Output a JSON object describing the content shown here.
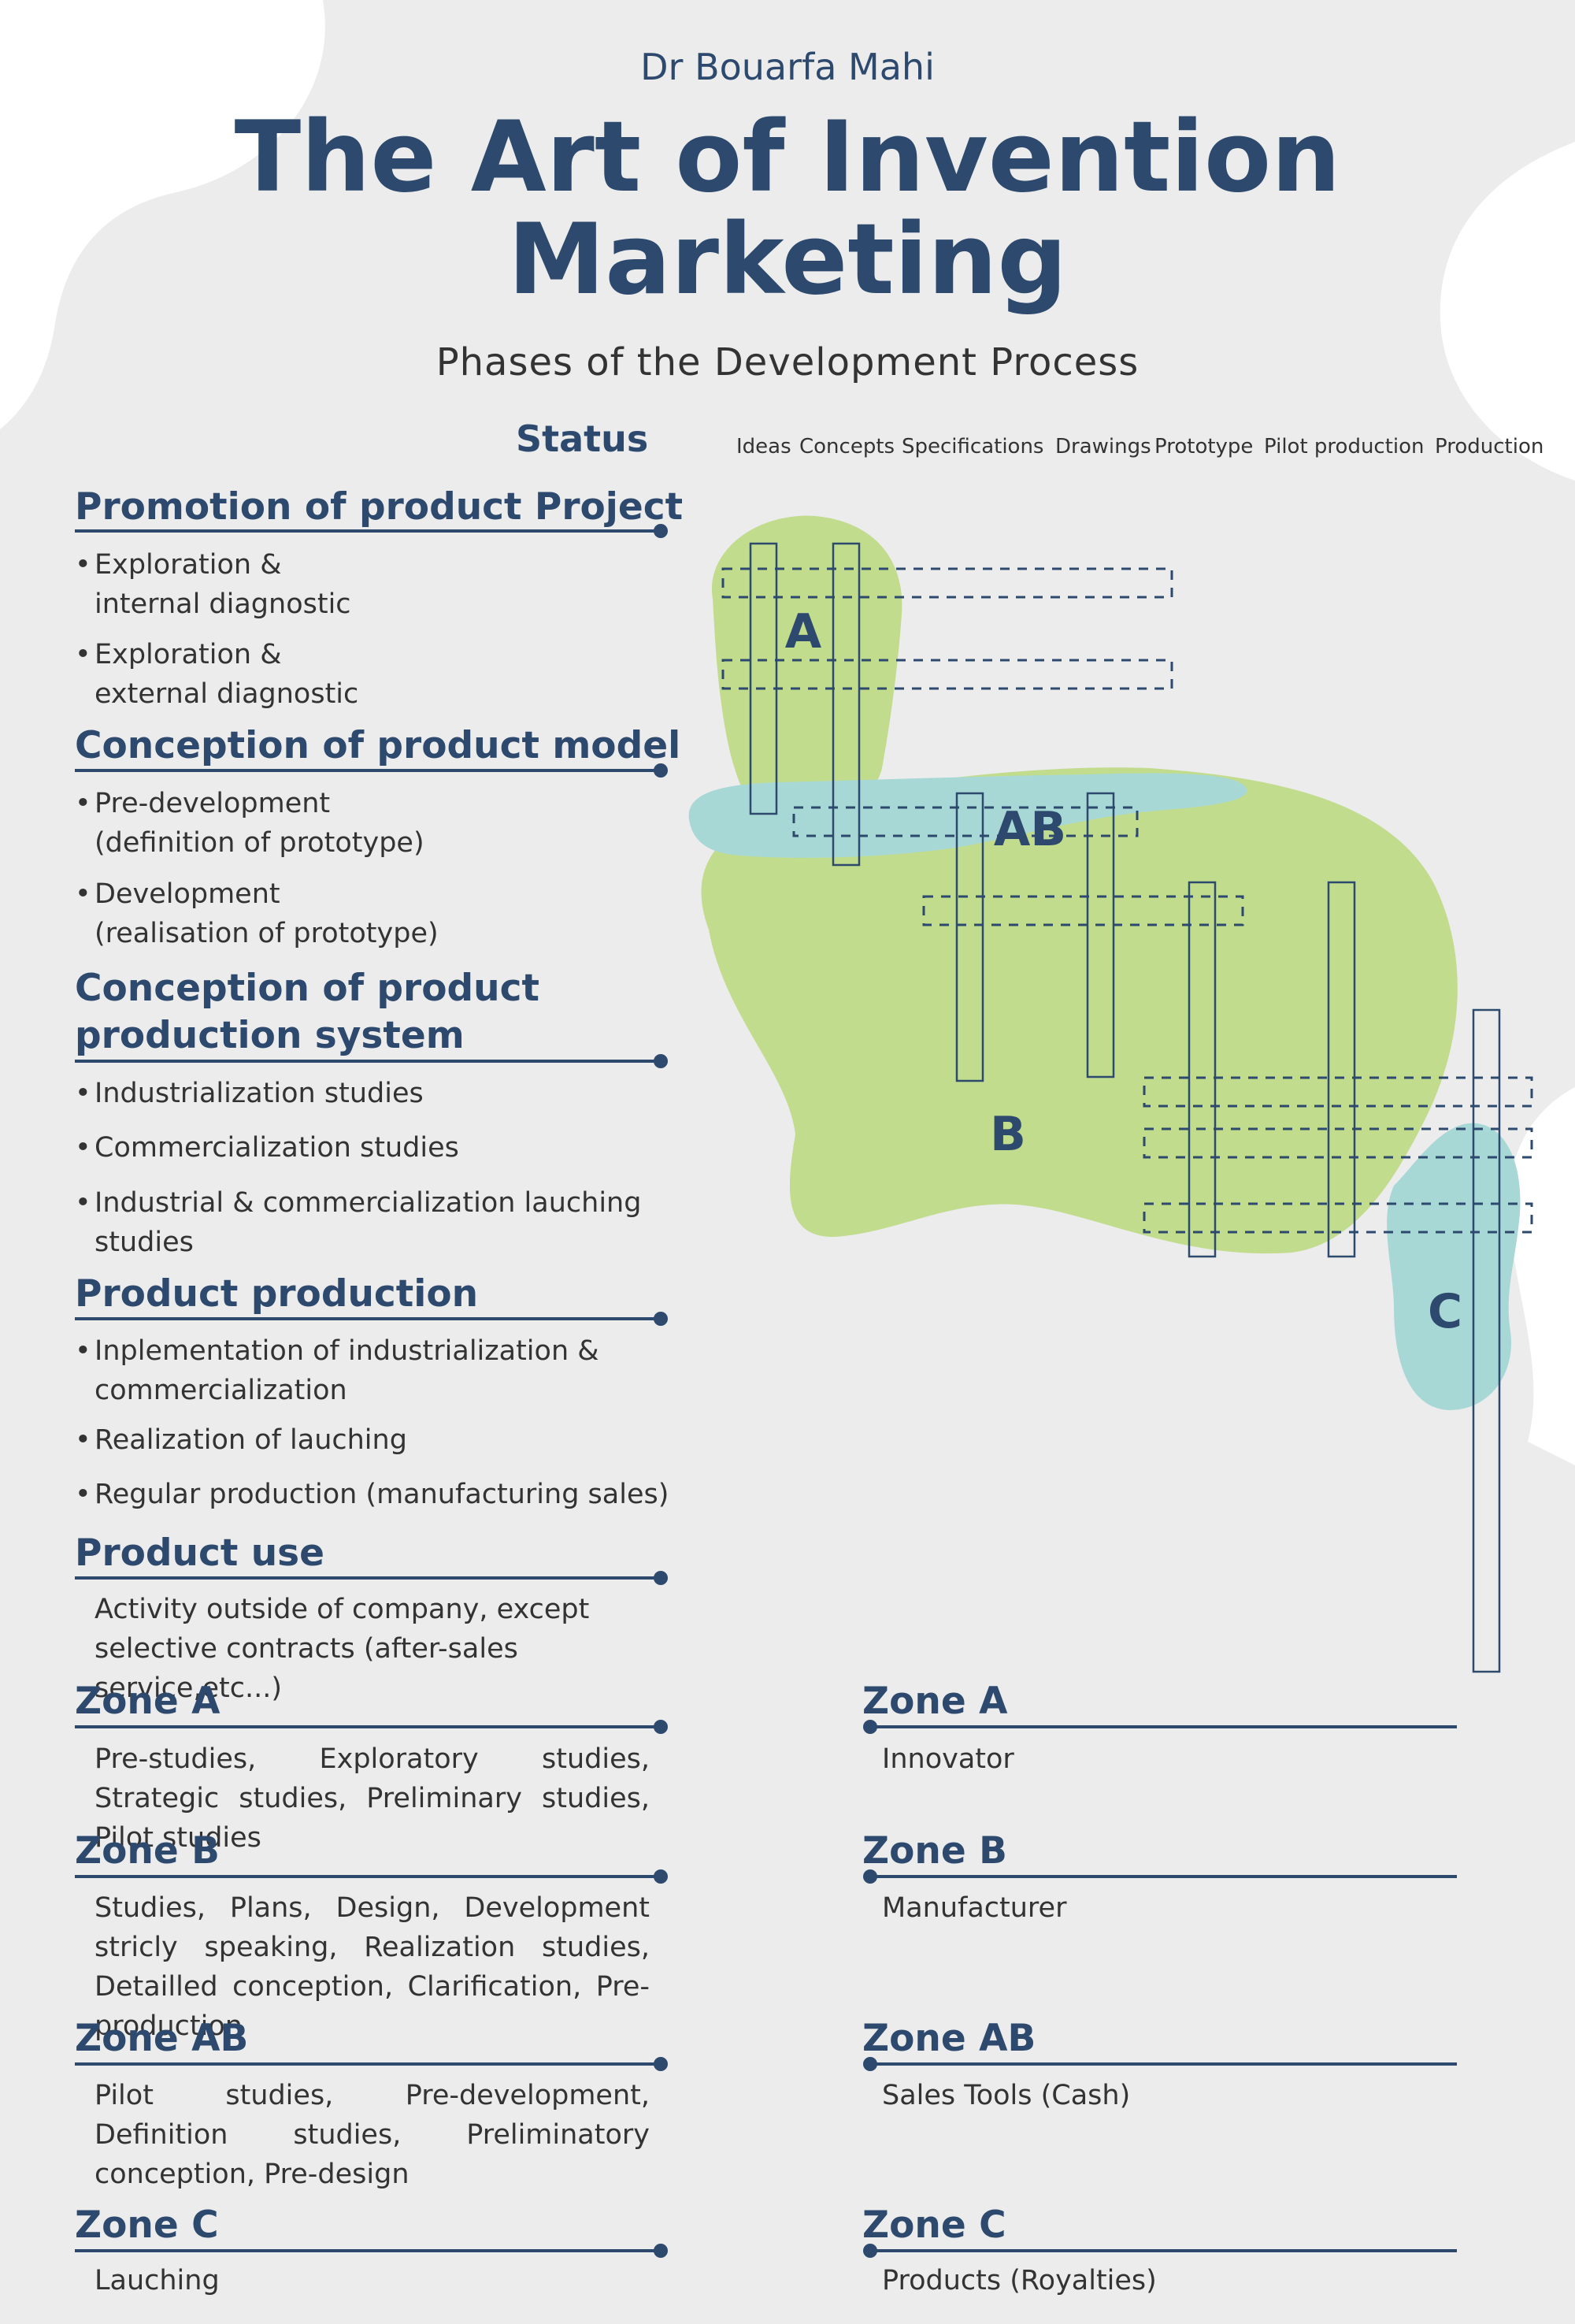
{
  "header": {
    "author": "Dr Bouarfa Mahi",
    "title_line1": "The Art of Invention",
    "title_line2": "Marketing",
    "subtitle": "Phases of the Development Process"
  },
  "status_label": "Status",
  "phases": [
    "Ideas",
    "Concepts",
    "Specifications",
    "Drawings",
    "Prototype",
    "Pilot production",
    "Production"
  ],
  "sections": [
    {
      "title": "Promotion of product Project",
      "items": [
        [
          "Exploration &",
          "internal diagnostic"
        ],
        [
          "Exploration &",
          "external diagnostic"
        ]
      ]
    },
    {
      "title": "Conception of product model",
      "items": [
        [
          "Pre-development",
          "(definition of prototype)"
        ],
        [
          "Development",
          "(realisation of prototype)"
        ]
      ]
    },
    {
      "title_line1": "Conception of product",
      "title_line2": "production system",
      "items": [
        [
          "Industrialization studies"
        ],
        [
          "Commercialization studies"
        ],
        [
          "Industrial & commercialization lauching",
          "studies"
        ]
      ]
    },
    {
      "title": "Product production",
      "items": [
        [
          "Inplementation of industrialization &",
          "commercialization"
        ],
        [
          "Realization of lauching"
        ],
        [
          "Regular production (manufacturing sales)"
        ]
      ]
    },
    {
      "title": "Product use",
      "text_line1": "Activity outside of company, except",
      "text_line2": "selective contracts (after-sales service,etc...)"
    }
  ],
  "zones_left": [
    {
      "title": "Zone A",
      "text": "Pre-studies,  Exploratory studies, Strategic studies, Preliminary studies, Pilot studies"
    },
    {
      "title": "Zone B",
      "text": "Studies, Plans, Design, Development stricly speaking, Realization studies, Detailled conception, Clarification, Pre-production"
    },
    {
      "title": "Zone AB",
      "text": "Pilot studies,  Pre-development, Definition studies, Preliminatory conception, Pre-design"
    },
    {
      "title": "Zone C",
      "text": "Lauching"
    }
  ],
  "zones_right": [
    {
      "title": "Zone A",
      "text": "Innovator"
    },
    {
      "title": "Zone B",
      "text": "Manufacturer"
    },
    {
      "title": "Zone AB",
      "text": "Sales Tools (Cash)"
    },
    {
      "title": "Zone C",
      "text": "Products (Royalties)"
    }
  ],
  "diagram_labels": {
    "a": "A",
    "ab": "AB",
    "b": "B",
    "c": "C"
  },
  "colors": {
    "primary": "#2d4a6e",
    "green": "#c1dc8d",
    "teal": "#a8d8d6",
    "background": "#ececec"
  }
}
